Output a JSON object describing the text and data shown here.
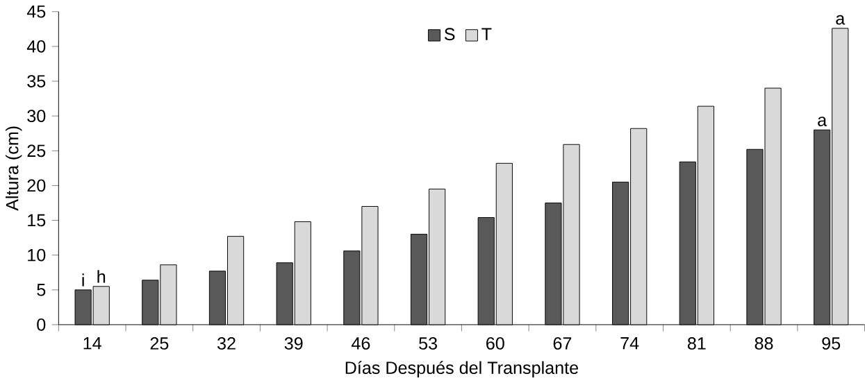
{
  "chart_data": {
    "type": "bar",
    "xlabel": "Días Después del Transplante",
    "ylabel": "Altura (cm)",
    "categories": [
      "14",
      "25",
      "32",
      "39",
      "46",
      "53",
      "60",
      "67",
      "74",
      "81",
      "88",
      "95"
    ],
    "series": [
      {
        "name": "S",
        "color": "#595959",
        "values": [
          5.0,
          6.4,
          7.7,
          8.9,
          10.6,
          13.0,
          15.4,
          17.5,
          20.5,
          23.4,
          25.2,
          28.0
        ]
      },
      {
        "name": "T",
        "color": "#d9d9d9",
        "values": [
          5.5,
          8.6,
          12.7,
          14.8,
          17.0,
          19.5,
          23.2,
          25.9,
          28.2,
          31.4,
          34.0,
          42.6
        ]
      }
    ],
    "ylim": [
      0,
      45
    ],
    "yticks": [
      0,
      5,
      10,
      15,
      20,
      25,
      30,
      35,
      40,
      45
    ],
    "legend": "top",
    "grid": false,
    "annotations": [
      {
        "text": "i",
        "x": "14",
        "y": 5.0
      },
      {
        "text": "h",
        "x": "14",
        "y": 5.5
      },
      {
        "text": "a",
        "x": "95",
        "y": 28.0
      },
      {
        "text": "a",
        "x": "95",
        "y": 42.6
      }
    ]
  }
}
